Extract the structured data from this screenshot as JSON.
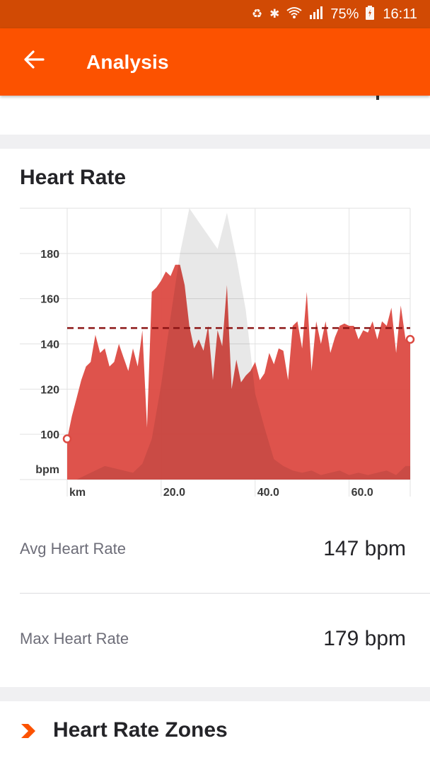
{
  "status_bar": {
    "icons": [
      "sync-icon",
      "bluetooth-icon",
      "wifi-icon",
      "signal-icon",
      "battery-icon"
    ],
    "battery": "75%",
    "time": "16:11"
  },
  "app_bar": {
    "title": "Analysis",
    "back_icon": "arrow-left-icon",
    "background": "#fc5200"
  },
  "heart_rate": {
    "title": "Heart Rate",
    "avg_label": "Avg Heart Rate",
    "avg_value": "147 bpm",
    "max_label": "Max Heart Rate",
    "max_value": "179 bpm"
  },
  "zones": {
    "title": "Heart Rate Zones",
    "icon": "chevron-right-icon",
    "accent": "#fc5200"
  },
  "chart_data": {
    "type": "area",
    "xlabel": "km",
    "ylabel": "bpm",
    "x_ticks": [
      "20.0",
      "40.0",
      "60.0"
    ],
    "y_ticks": [
      "100",
      "120",
      "140",
      "160",
      "180"
    ],
    "xlim": [
      0,
      73
    ],
    "ylim": [
      80,
      200
    ],
    "avg_line": 147,
    "grid": true,
    "series": [
      {
        "color": "#dc4a42",
        "x": [
          0,
          1,
          2,
          3,
          4,
          5,
          6,
          7,
          8,
          9,
          10,
          11,
          12,
          13,
          14,
          15,
          16,
          17,
          18,
          19,
          20,
          21,
          22,
          23,
          24,
          25,
          26,
          27,
          28,
          29,
          30,
          31,
          32,
          33,
          34,
          35,
          36,
          37,
          38,
          39,
          40,
          41,
          42,
          43,
          44,
          45,
          46,
          47,
          48,
          49,
          50,
          51,
          52,
          53,
          54,
          55,
          56,
          57,
          58,
          59,
          60,
          61,
          62,
          63,
          64,
          65,
          66,
          67,
          68,
          69,
          70,
          71,
          72,
          73
        ],
        "y": [
          98,
          108,
          116,
          124,
          130,
          132,
          144,
          136,
          138,
          130,
          132,
          140,
          134,
          128,
          138,
          130,
          146,
          103,
          163,
          165,
          168,
          172,
          170,
          175,
          175,
          166,
          148,
          138,
          142,
          137,
          148,
          124,
          146,
          139,
          166,
          120,
          133,
          123,
          126,
          128,
          132,
          124,
          127,
          136,
          131,
          138,
          137,
          124,
          148,
          150,
          138,
          163,
          128,
          150,
          140,
          150,
          136,
          143,
          148,
          149,
          148,
          148,
          142,
          146,
          145,
          150,
          142,
          150,
          148,
          156,
          136,
          157,
          142,
          142
        ]
      },
      {
        "color": "#e8e8e8",
        "x": [
          0,
          2,
          4,
          6,
          8,
          10,
          12,
          14,
          16,
          18,
          20,
          22,
          24,
          26,
          28,
          30,
          32,
          34,
          36,
          38,
          40,
          42,
          44,
          46,
          48,
          50,
          52,
          54,
          56,
          58,
          60,
          62,
          64,
          66,
          68,
          70,
          72,
          73
        ],
        "y": [
          80,
          80,
          82,
          84,
          86,
          85,
          84,
          83,
          87,
          98,
          122,
          152,
          180,
          200,
          194,
          188,
          182,
          198,
          178,
          155,
          118,
          103,
          89,
          86,
          84,
          83,
          84,
          82,
          83,
          84,
          82,
          83,
          82,
          83,
          84,
          82,
          86,
          86
        ]
      }
    ]
  }
}
